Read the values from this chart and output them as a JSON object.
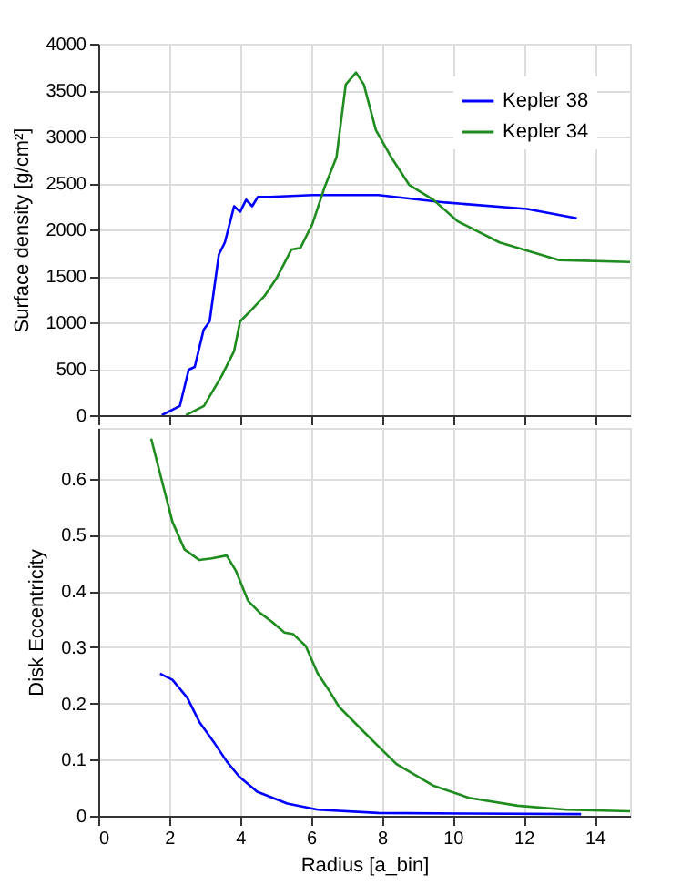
{
  "chart_data": [
    {
      "type": "line",
      "ylabel": "Surface density [g/cm²]",
      "xlim": [
        0,
        15
      ],
      "xticks": [
        0,
        2,
        4,
        6,
        8,
        10,
        12,
        14
      ],
      "ylim": [
        0,
        4000
      ],
      "yticks": [
        0,
        500,
        1000,
        1500,
        2000,
        2500,
        3000,
        3500,
        4000
      ],
      "grid": true,
      "legend": "top right",
      "tick_labels": "y",
      "series": [
        {
          "name": "Kepler 38",
          "color": "#0000ff",
          "x": [
            1.79,
            2.3,
            2.55,
            2.72,
            2.97,
            3.14,
            3.4,
            3.57,
            3.83,
            4.0,
            4.17,
            4.34,
            4.5,
            4.85,
            6.04,
            7.9,
            9.8,
            12.1,
            13.5
          ],
          "values": [
            0,
            100,
            490,
            520,
            920,
            1010,
            1730,
            1860,
            2250,
            2190,
            2320,
            2250,
            2350,
            2350,
            2370,
            2370,
            2290,
            2220,
            2120
          ]
        },
        {
          "name": "Kepler 34",
          "color": "#1e8c1e",
          "x": [
            2.47,
            2.98,
            3.49,
            3.83,
            4.0,
            4.26,
            4.68,
            5.02,
            5.45,
            5.7,
            6.04,
            6.38,
            6.72,
            6.98,
            7.27,
            7.49,
            7.83,
            8.26,
            8.77,
            9.45,
            10.13,
            11.32,
            13.0,
            15.0
          ],
          "values": [
            0,
            100,
            430,
            690,
            1010,
            1110,
            1280,
            1470,
            1785,
            1800,
            2060,
            2450,
            2780,
            3560,
            3690,
            3560,
            3070,
            2780,
            2480,
            2320,
            2090,
            1860,
            1670,
            1650
          ]
        }
      ]
    },
    {
      "type": "line",
      "xlabel": "Radius [a_bin]",
      "ylabel": "Disk Eccentricity",
      "xlim": [
        0,
        15
      ],
      "xticks": [
        0,
        2,
        4,
        6,
        8,
        10,
        12,
        14
      ],
      "ylim": [
        0,
        0.69
      ],
      "yticks": [
        0,
        0.1,
        0.2,
        0.3,
        0.4,
        0.5,
        0.6
      ],
      "grid": true,
      "series": [
        {
          "color": "#1e8c1e",
          "x": [
            1.49,
            1.74,
            2.09,
            2.43,
            2.85,
            3.2,
            3.62,
            3.88,
            4.22,
            4.56,
            4.9,
            5.25,
            5.5,
            5.85,
            6.19,
            6.53,
            6.79,
            7.56,
            8.41,
            9.44,
            10.46,
            11.83,
            13.2,
            15.0
          ],
          "values": [
            0.671,
            0.609,
            0.523,
            0.474,
            0.455,
            0.458,
            0.463,
            0.436,
            0.383,
            0.361,
            0.345,
            0.326,
            0.323,
            0.302,
            0.253,
            0.221,
            0.194,
            0.145,
            0.092,
            0.054,
            0.032,
            0.018,
            0.011,
            0.008
          ]
        },
        {
          "color": "#0000ff",
          "x": [
            1.74,
            2.09,
            2.51,
            2.85,
            3.28,
            3.62,
            3.97,
            4.48,
            5.33,
            6.19,
            7.9,
            10.46,
            13.62
          ],
          "values": [
            0.253,
            0.242,
            0.21,
            0.167,
            0.129,
            0.097,
            0.07,
            0.043,
            0.022,
            0.011,
            0.005,
            0.004,
            0.003
          ]
        }
      ]
    }
  ]
}
